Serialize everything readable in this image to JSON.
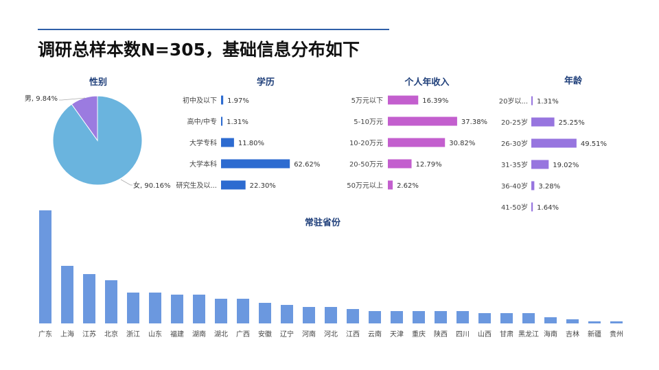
{
  "title": "调研总样本数N=305，基础信息分布如下",
  "chart_data": [
    {
      "type": "pie",
      "title": "性别",
      "categories": [
        "女",
        "男"
      ],
      "values": [
        90.16,
        9.84
      ],
      "labels": [
        "女, 90.16%",
        "男, 9.84%"
      ],
      "colors": [
        "#6ab4de",
        "#9b7be0"
      ]
    },
    {
      "type": "bar",
      "orientation": "horizontal",
      "title": "学历",
      "categories": [
        "初中及以下",
        "高中/中专",
        "大学专科",
        "大学本科",
        "研究生及以..."
      ],
      "values": [
        1.97,
        1.31,
        11.8,
        62.62,
        22.3
      ],
      "labels": [
        "1.97%",
        "1.31%",
        "11.80%",
        "62.62%",
        "22.30%"
      ],
      "color": "#2d6bd0"
    },
    {
      "type": "bar",
      "orientation": "horizontal",
      "title": "个人年收入",
      "categories": [
        "5万元以下",
        "5-10万元",
        "10-20万元",
        "20-50万元",
        "50万元以上"
      ],
      "values": [
        16.39,
        37.38,
        30.82,
        12.79,
        2.62
      ],
      "labels": [
        "16.39%",
        "37.38%",
        "30.82%",
        "12.79%",
        "2.62%"
      ],
      "color": "#c35fce"
    },
    {
      "type": "bar",
      "orientation": "horizontal",
      "title": "年龄",
      "categories": [
        "20岁以...",
        "20-25岁",
        "26-30岁",
        "31-35岁",
        "36-40岁",
        "41-50岁"
      ],
      "values": [
        1.31,
        25.25,
        49.51,
        19.02,
        3.28,
        1.64
      ],
      "labels": [
        "1.31%",
        "25.25%",
        "49.51%",
        "19.02%",
        "3.28%",
        "1.64%"
      ],
      "color": "#9775df"
    },
    {
      "type": "bar",
      "orientation": "vertical",
      "title": "常驻省份",
      "categories": [
        "广东",
        "上海",
        "江苏",
        "北京",
        "浙江",
        "山东",
        "福建",
        "湖南",
        "湖北",
        "广西",
        "安徽",
        "辽宁",
        "河南",
        "河北",
        "江西",
        "云南",
        "天津",
        "重庆",
        "陕西",
        "四川",
        "山西",
        "甘肃",
        "黑龙江",
        "海南",
        "吉林",
        "新疆",
        "贵州"
      ],
      "values": [
        55,
        28,
        24,
        21,
        15,
        15,
        14,
        14,
        12,
        12,
        10,
        9,
        8,
        8,
        7,
        6,
        6,
        6,
        6,
        6,
        5,
        5,
        5,
        3,
        2,
        1,
        1
      ],
      "color": "#6b98df"
    }
  ]
}
